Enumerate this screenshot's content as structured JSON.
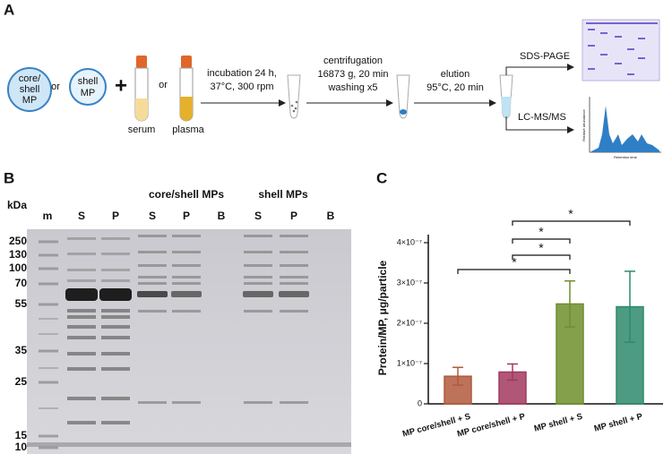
{
  "panel_a": {
    "letter": "A",
    "core_shell_mp": [
      "core/",
      "shell",
      "MP"
    ],
    "or_1": "or",
    "shell_mp": [
      "shell",
      "MP"
    ],
    "plus": "+",
    "or_2": "or",
    "serum": "serum",
    "plasma": "plasma",
    "incubation": [
      "incubation 24 h,",
      "37°C, 300 rpm"
    ],
    "centrifugation": [
      "centrifugation",
      "16873 g, 20 min",
      "washing x5"
    ],
    "elution": [
      "elution",
      "95°C, 20 min"
    ],
    "sds_page": "SDS-PAGE",
    "lc_ms": "LC-MS/MS",
    "lc_y_label": "Relative abundance",
    "lc_x_label": "Retention time"
  },
  "panel_b": {
    "letter": "B",
    "kda": "kDa",
    "groups": [
      "core/shell MPs",
      "shell MPs"
    ],
    "lanes": [
      "m",
      "S",
      "P",
      "S",
      "P",
      "B",
      "S",
      "P",
      "B"
    ],
    "markers": [
      "250",
      "130",
      "100",
      "70",
      "55",
      "35",
      "25",
      "15",
      "10"
    ]
  },
  "chart_data": {
    "type": "bar",
    "letter": "C",
    "y_label": "Protein/MP, μg/particle",
    "categories": [
      "MP core/shell + S",
      "MP core/shell + P",
      "MP shell + S",
      "MP shell + P"
    ],
    "values": [
      6.85e-08,
      7.9e-08,
      2.48e-07,
      2.41e-07
    ],
    "errors": [
      2.2e-08,
      2e-08,
      5.7e-08,
      8.8e-08
    ],
    "colors": [
      "#b05a3c",
      "#a2385e",
      "#6e8f2c",
      "#2e8a6c"
    ],
    "ylim": [
      0,
      4.2e-07
    ],
    "yticks": [
      0,
      {
        "value": 1e-07,
        "label": "1×10⁻⁷"
      },
      {
        "value": 2e-07,
        "label": "2×10⁻⁷"
      },
      {
        "value": 3e-07,
        "label": "3×10⁻⁷"
      },
      {
        "value": 4e-07,
        "label": "4×10⁻⁷"
      }
    ],
    "annotations": [
      "*",
      "*",
      "*",
      "*"
    ]
  }
}
